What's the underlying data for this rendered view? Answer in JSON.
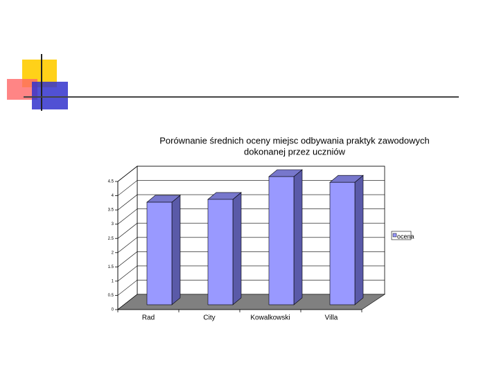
{
  "chart_data": {
    "type": "bar3d",
    "title": "Porównanie średnich oceny  miejsc odbywania praktyk zawodowych dokonanej przez uczniów",
    "categories": [
      "Rad",
      "City",
      "Kowalkowski",
      "Villa"
    ],
    "series": [
      {
        "name": "ocena",
        "color": "#9999ff",
        "values": [
          3.6,
          3.7,
          4.5,
          4.3
        ]
      }
    ],
    "ylim": [
      0,
      4.5
    ],
    "yticks": [
      0,
      0.5,
      1,
      1.5,
      2,
      2.5,
      3,
      3.5,
      4,
      4.5
    ],
    "grid": true,
    "legend": "right"
  }
}
